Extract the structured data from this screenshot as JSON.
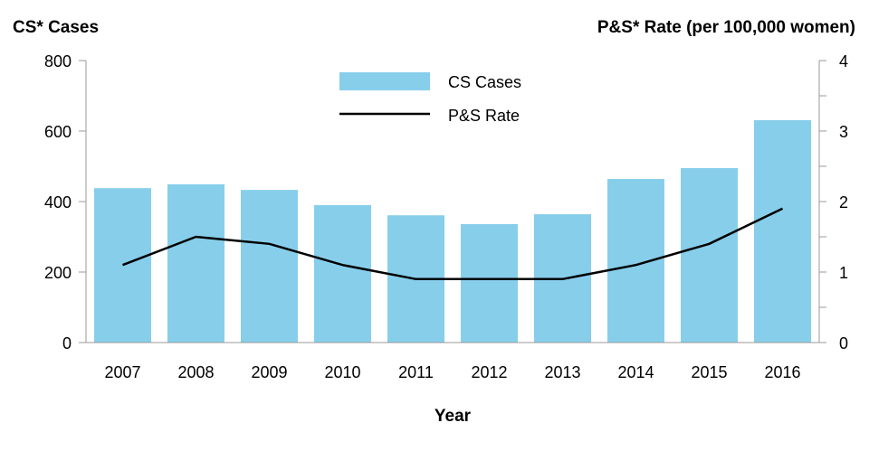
{
  "chart_data": {
    "type": "bar+line",
    "categories": [
      "2007",
      "2008",
      "2009",
      "2010",
      "2011",
      "2012",
      "2013",
      "2014",
      "2015",
      "2016"
    ],
    "series": [
      {
        "name": "CS Cases",
        "type": "bar",
        "axis": "left",
        "color": "#87CEEB",
        "values": [
          438,
          449,
          433,
          390,
          361,
          336,
          364,
          464,
          495,
          631
        ]
      },
      {
        "name": "P&S Rate",
        "type": "line",
        "axis": "right",
        "color": "#000000",
        "values": [
          1.1,
          1.5,
          1.4,
          1.1,
          0.9,
          0.9,
          0.9,
          1.1,
          1.4,
          1.9
        ]
      }
    ],
    "left_axis": {
      "label": "CS* Cases",
      "ylim": [
        0,
        800
      ],
      "ticks": [
        "0",
        "200",
        "400",
        "600",
        "800"
      ]
    },
    "right_axis": {
      "label": "P&S* Rate (per 100,000 women)",
      "ylim": [
        0,
        4
      ],
      "ticks": [
        "0",
        "1",
        "2",
        "3",
        "4"
      ]
    },
    "xlabel": "Year",
    "legend": {
      "placement": "top-center",
      "entries": [
        "CS Cases",
        "P&S Rate"
      ]
    },
    "grid": false
  }
}
